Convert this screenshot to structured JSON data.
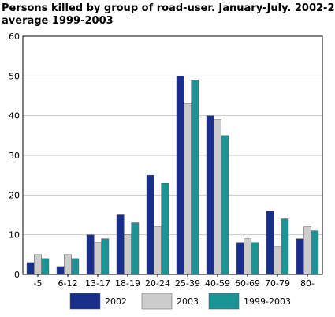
{
  "chart_data": {
    "type": "bar",
    "title_lines": [
      "Persons killed by group of road-user. January-July. 2002-2003 and",
      "average 1999-2003"
    ],
    "categories": [
      "-5",
      "6-12",
      "13-17",
      "18-19",
      "20-24",
      "25-39",
      "40-59",
      "60-69",
      "70-79",
      "80-"
    ],
    "series": [
      {
        "name": "2002",
        "color": "#1a2f8c",
        "values": [
          3,
          2,
          10,
          15,
          25,
          50,
          40,
          8,
          16,
          9
        ]
      },
      {
        "name": "2003",
        "color": "#cccccc",
        "values": [
          5,
          5,
          8,
          10,
          12,
          43,
          39,
          9,
          7,
          12
        ]
      },
      {
        "name": "1999-2003",
        "color": "#1a9494",
        "values": [
          4,
          4,
          9,
          13,
          23,
          49,
          35,
          8,
          14,
          11
        ]
      }
    ],
    "ylim": [
      0,
      60
    ],
    "yticks": [
      0,
      10,
      20,
      30,
      40,
      50,
      60
    ],
    "grid": true,
    "legend": "bottom"
  }
}
